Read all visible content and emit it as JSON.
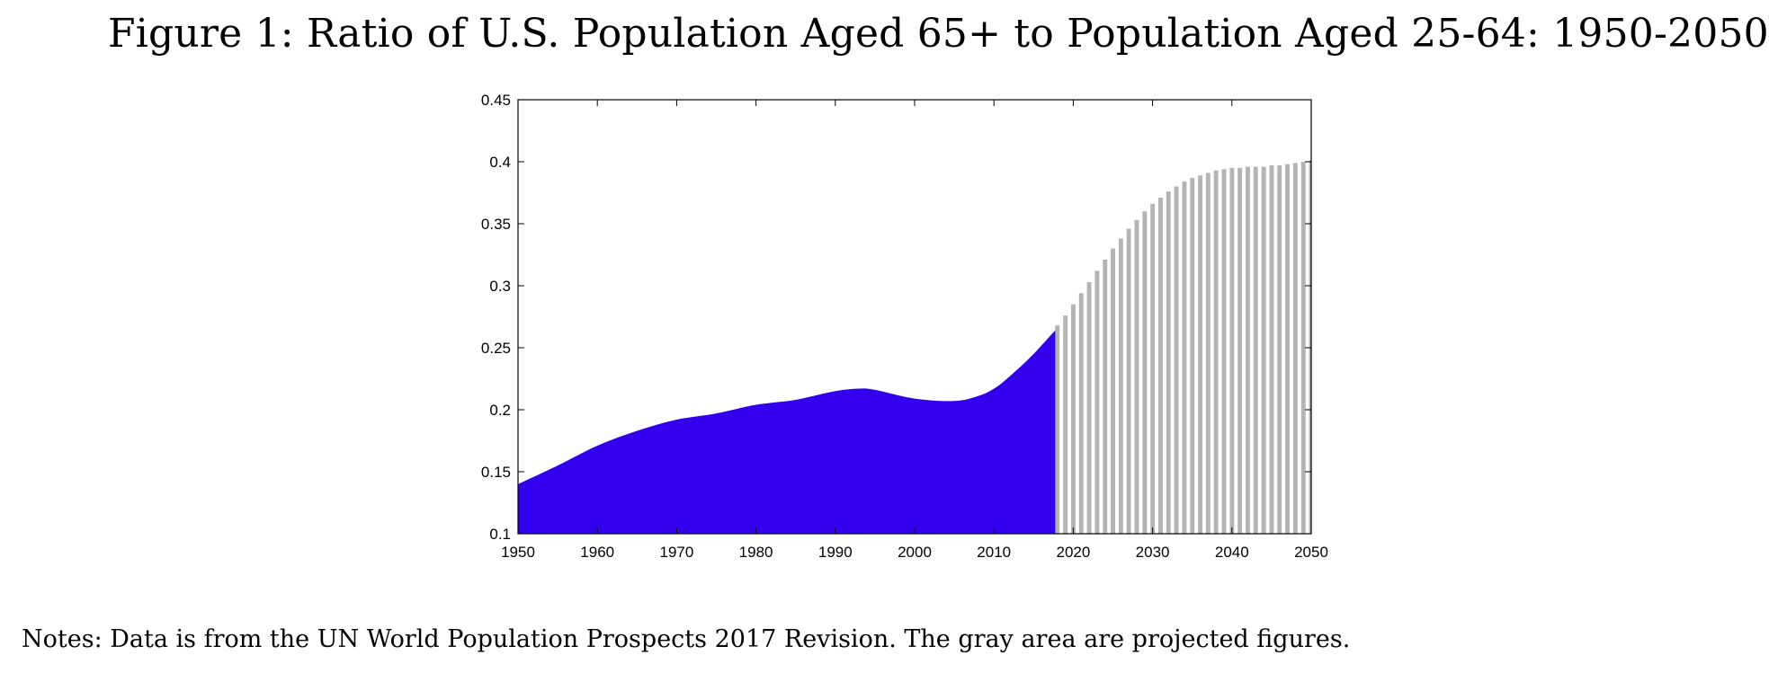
{
  "figure": {
    "title": "Figure 1: Ratio of U.S. Population Aged 65+ to Population Aged 25-64: 1950-2050",
    "notes": "Notes: Data is from the UN World Population Prospects 2017 Revision. The gray area are projected figures."
  },
  "chart_data": {
    "type": "area",
    "title": "",
    "xlabel": "",
    "ylabel": "",
    "xlim": [
      1950,
      2050
    ],
    "ylim": [
      0.1,
      0.45
    ],
    "xticks": [
      1950,
      1960,
      1970,
      1980,
      1990,
      2000,
      2010,
      2020,
      2030,
      2040,
      2050
    ],
    "xtick_labels": [
      "1950",
      "1960",
      "1970",
      "1980",
      "1990",
      "2000",
      "2010",
      "2020",
      "2030",
      "2040",
      "2050"
    ],
    "yticks": [
      0.1,
      0.15,
      0.2,
      0.25,
      0.3,
      0.35,
      0.4,
      0.45
    ],
    "ytick_labels": [
      "0.1",
      "0.15",
      "0.2",
      "0.25",
      "0.3",
      "0.35",
      "0.4",
      "0.45"
    ],
    "grid": false,
    "legend": "none",
    "series": [
      {
        "color": "#3300ee",
        "style": "filled-area",
        "x": [
          1950,
          1955,
          1960,
          1965,
          1970,
          1975,
          1980,
          1985,
          1990,
          1993,
          1995,
          2000,
          2005,
          2008,
          2010,
          2012,
          2015,
          2018
        ],
        "y": [
          0.14,
          0.155,
          0.171,
          0.183,
          0.192,
          0.197,
          0.204,
          0.208,
          0.215,
          0.217,
          0.216,
          0.209,
          0.207,
          0.211,
          0.217,
          0.227,
          0.245,
          0.266
        ]
      },
      {
        "color": "#b3b3b3",
        "style": "vertical-bars",
        "x": [
          2018,
          2019,
          2020,
          2021,
          2022,
          2023,
          2024,
          2025,
          2026,
          2027,
          2028,
          2029,
          2030,
          2031,
          2032,
          2033,
          2034,
          2035,
          2036,
          2037,
          2038,
          2039,
          2040,
          2041,
          2042,
          2043,
          2044,
          2045,
          2046,
          2047,
          2048,
          2049,
          2050
        ],
        "y": [
          0.268,
          0.276,
          0.285,
          0.294,
          0.303,
          0.312,
          0.321,
          0.33,
          0.338,
          0.346,
          0.353,
          0.36,
          0.366,
          0.371,
          0.376,
          0.38,
          0.384,
          0.387,
          0.389,
          0.391,
          0.393,
          0.394,
          0.395,
          0.395,
          0.396,
          0.396,
          0.396,
          0.397,
          0.397,
          0.398,
          0.399,
          0.4,
          0.401
        ]
      }
    ]
  }
}
